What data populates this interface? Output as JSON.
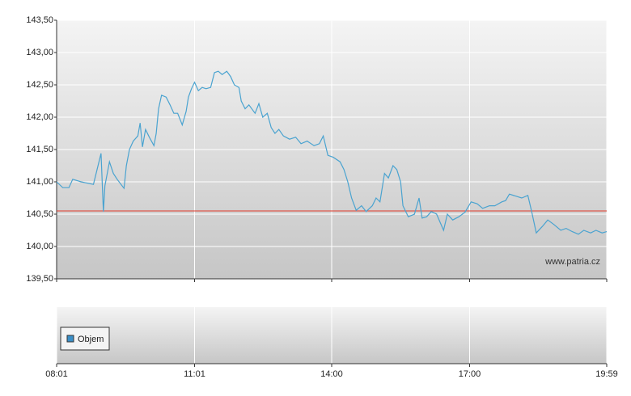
{
  "chart_data": {
    "type": "line",
    "annotation": "www.patria.cz",
    "x": [
      481,
      489,
      497,
      502,
      513,
      529,
      539,
      542,
      544,
      550,
      555,
      560,
      565,
      569,
      572,
      576,
      581,
      587,
      590,
      593,
      597,
      602,
      608,
      611,
      614,
      618,
      624,
      629,
      634,
      639,
      645,
      650,
      653,
      657,
      661,
      666,
      671,
      676,
      682,
      687,
      692,
      697,
      703,
      708,
      713,
      719,
      722,
      727,
      732,
      740,
      745,
      750,
      756,
      761,
      766,
      771,
      777,
      785,
      793,
      800,
      808,
      817,
      824,
      829,
      835,
      842,
      851,
      856,
      861,
      866,
      872,
      879,
      885,
      893,
      898,
      903,
      909,
      914,
      920,
      925,
      930,
      933,
      940,
      948,
      954,
      958,
      964,
      970,
      977,
      986,
      991,
      998,
      1006,
      1014,
      1022,
      1030,
      1037,
      1046,
      1053,
      1062,
      1067,
      1072,
      1080,
      1088,
      1096,
      1101,
      1107,
      1115,
      1122,
      1130,
      1139,
      1146,
      1154,
      1162,
      1169,
      1178,
      1185,
      1193,
      1199
    ],
    "series": [
      {
        "color": "#4aa3d0",
        "values": [
          141.0,
          140.91,
          140.91,
          141.04,
          141.0,
          140.96,
          141.44,
          140.54,
          140.94,
          141.31,
          141.13,
          141.04,
          140.96,
          140.9,
          141.25,
          141.5,
          141.63,
          141.71,
          141.91,
          141.54,
          141.81,
          141.69,
          141.56,
          141.75,
          142.13,
          142.34,
          142.31,
          142.19,
          142.06,
          142.06,
          141.88,
          142.09,
          142.31,
          142.44,
          142.54,
          142.41,
          142.46,
          142.44,
          142.46,
          142.69,
          142.71,
          142.66,
          142.71,
          142.63,
          142.5,
          142.46,
          142.25,
          142.13,
          142.19,
          142.06,
          142.21,
          142.0,
          142.06,
          141.84,
          141.75,
          141.81,
          141.71,
          141.66,
          141.69,
          141.59,
          141.63,
          141.56,
          141.59,
          141.71,
          141.41,
          141.38,
          141.31,
          141.19,
          141.0,
          140.75,
          140.56,
          140.63,
          140.54,
          140.63,
          140.75,
          140.69,
          141.13,
          141.06,
          141.25,
          141.19,
          141.0,
          140.63,
          140.46,
          140.5,
          140.75,
          140.44,
          140.46,
          140.54,
          140.5,
          140.25,
          140.5,
          140.41,
          140.46,
          140.53,
          140.69,
          140.66,
          140.59,
          140.63,
          140.63,
          140.69,
          140.71,
          140.81,
          140.78,
          140.75,
          140.79,
          140.54,
          140.21,
          140.31,
          140.41,
          140.34,
          140.25,
          140.28,
          140.23,
          140.19,
          140.25,
          140.21,
          140.25,
          140.21,
          140.23
        ]
      }
    ],
    "reference_line": {
      "value": 140.55,
      "color": "#e03a2a"
    },
    "volume": {
      "name": "Objem",
      "color": "#3a8fc8"
    },
    "xlim": [
      481,
      1199
    ],
    "xticks": [
      {
        "value": 481,
        "label": "08:01"
      },
      {
        "value": 661,
        "label": "11:01"
      },
      {
        "value": 840,
        "label": "14:00"
      },
      {
        "value": 1020,
        "label": "17:00"
      },
      {
        "value": 1199,
        "label": "19:59"
      }
    ],
    "ylim": [
      139.5,
      143.5
    ],
    "yticks": [
      {
        "value": 139.5,
        "label": "139,50"
      },
      {
        "value": 140,
        "label": "140,00"
      },
      {
        "value": 140.5,
        "label": "140,50"
      },
      {
        "value": 141,
        "label": "141,00"
      },
      {
        "value": 141.5,
        "label": "141,50"
      },
      {
        "value": 142,
        "label": "142,00"
      },
      {
        "value": 142.5,
        "label": "142,50"
      },
      {
        "value": 143,
        "label": "143,00"
      },
      {
        "value": 143.5,
        "label": "143,50"
      }
    ],
    "grid": true
  }
}
